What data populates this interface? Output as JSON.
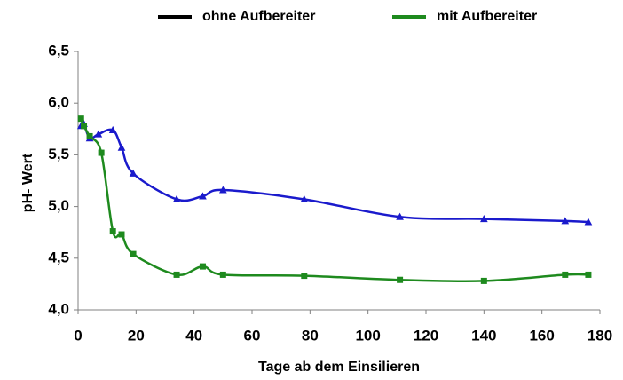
{
  "chart_data": {
    "type": "line",
    "xlabel": "Tage ab dem Einsilieren",
    "ylabel": "pH- Wert",
    "xlim": [
      0,
      180
    ],
    "xticks": [
      0,
      20,
      40,
      60,
      80,
      100,
      120,
      140,
      160,
      180
    ],
    "ylim": [
      4.0,
      6.5
    ],
    "yticks": [
      {
        "value": 4.0,
        "label": "4,0"
      },
      {
        "value": 4.5,
        "label": "4,5"
      },
      {
        "value": 5.0,
        "label": "5,0"
      },
      {
        "value": 5.5,
        "label": "5,5"
      },
      {
        "value": 6.0,
        "label": "6,0"
      },
      {
        "value": 6.5,
        "label": "6,5"
      }
    ],
    "grid": false,
    "legend": "top",
    "series": [
      {
        "name": "ohne Aufbereiter",
        "color": "#1a1acc",
        "legend_color": "#000000",
        "marker": "triangle",
        "x": [
          1,
          2,
          4,
          7,
          12,
          15,
          19,
          34,
          43,
          50,
          78,
          111,
          140,
          168,
          176
        ],
        "values": [
          5.78,
          5.8,
          5.66,
          5.7,
          5.74,
          5.57,
          5.32,
          5.07,
          5.1,
          5.16,
          5.07,
          4.9,
          4.88,
          4.86,
          4.85
        ]
      },
      {
        "name": "mit Aufbereiter",
        "color": "#1e8a1e",
        "legend_color": "#1e8a1e",
        "marker": "square",
        "x": [
          1,
          2,
          4,
          8,
          12,
          15,
          19,
          34,
          43,
          50,
          78,
          111,
          140,
          168,
          176
        ],
        "values": [
          5.85,
          5.78,
          5.68,
          5.52,
          4.76,
          4.73,
          4.54,
          4.34,
          4.42,
          4.34,
          4.33,
          4.29,
          4.28,
          4.34,
          4.34
        ]
      }
    ]
  }
}
